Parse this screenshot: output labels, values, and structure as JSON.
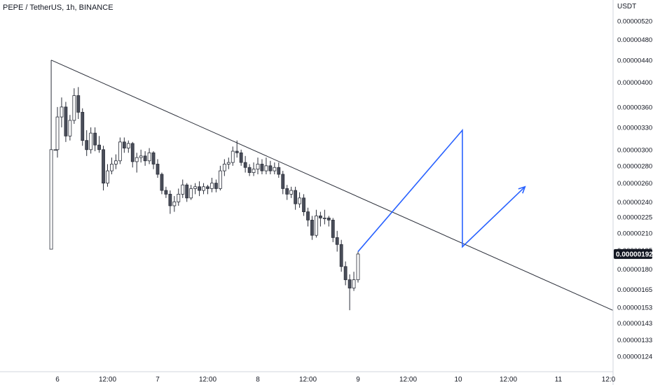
{
  "header": {
    "title": "PEPE / TetherUS, 1h, BINANCE",
    "unit": "USDT"
  },
  "colors": {
    "candle_up_fill": "#ffffff",
    "candle_down_fill": "#4a4e5a",
    "candle_outline": "#2a2e39",
    "trendline": "#2a2e39",
    "projection": "#2962ff",
    "axis_line": "#d1d4dc",
    "price_tag_bg": "#131722"
  },
  "chart_data": {
    "type": "candlestick",
    "title": "PEPE / TetherUS, 1h, BINANCE",
    "ylabel": "USDT",
    "ylim": [
      1.17e-07,
      5.65e-07
    ],
    "y_scale": "log",
    "y_ticks": [
      "0.00000520",
      "0.00000480",
      "0.00000440",
      "0.00000400",
      "0.00000360",
      "0.00000330",
      "0.00000300",
      "0.00000280",
      "0.00000260",
      "0.00000240",
      "0.00000225",
      "0.00000210",
      "0.00000195",
      "0.00000180",
      "0.00000165",
      "0.00000153",
      "0.00000143",
      "0.00000133",
      "0.00000124"
    ],
    "y_tick_values": [
      5.2e-07,
      4.8e-07,
      4.4e-07,
      4e-07,
      3.6e-07,
      3.3e-07,
      3e-07,
      2.8e-07,
      2.6e-07,
      2.4e-07,
      2.25e-07,
      2.1e-07,
      1.95e-07,
      1.8e-07,
      1.65e-07,
      1.53e-07,
      1.43e-07,
      1.33e-07,
      1.24e-07
    ],
    "x_ticks": [
      "6",
      "12:00",
      "7",
      "12:00",
      "8",
      "12:00",
      "9",
      "12:00",
      "10",
      "12:00",
      "11",
      "12:0"
    ],
    "x_tick_hours": [
      0,
      12,
      24,
      36,
      48,
      60,
      72,
      84,
      96,
      108,
      120,
      132
    ],
    "current_price": "0.00000192",
    "current_price_value": 1.92e-07,
    "candles": [
      {
        "h": -1.5,
        "o": 1.96e-07,
        "c": 3e-07,
        "hi": 4.4e-07,
        "lo": 1.96e-07
      },
      {
        "h": -0.5,
        "o": 3e-07,
        "c": 3e-07,
        "hi": 3e-07,
        "lo": 3e-07
      },
      {
        "h": 0,
        "o": 3e-07,
        "c": 3.45e-07,
        "hi": 3.6e-07,
        "lo": 2.9e-07
      },
      {
        "h": 1,
        "o": 3.45e-07,
        "c": 3.6e-07,
        "hi": 3.75e-07,
        "lo": 3.3e-07
      },
      {
        "h": 2,
        "o": 3.6e-07,
        "c": 3.18e-07,
        "hi": 3.68e-07,
        "lo": 3.1e-07
      },
      {
        "h": 3,
        "o": 3.18e-07,
        "c": 3.4e-07,
        "hi": 3.48e-07,
        "lo": 3.12e-07
      },
      {
        "h": 4,
        "o": 3.4e-07,
        "c": 3.78e-07,
        "hi": 3.9e-07,
        "lo": 3.35e-07
      },
      {
        "h": 5,
        "o": 3.78e-07,
        "c": 3.52e-07,
        "hi": 3.92e-07,
        "lo": 3.42e-07
      },
      {
        "h": 6,
        "o": 3.52e-07,
        "c": 3.12e-07,
        "hi": 3.58e-07,
        "lo": 3.05e-07
      },
      {
        "h": 7,
        "o": 3.12e-07,
        "c": 3e-07,
        "hi": 3.26e-07,
        "lo": 2.92e-07
      },
      {
        "h": 8,
        "o": 3e-07,
        "c": 3.22e-07,
        "hi": 3.3e-07,
        "lo": 2.95e-07
      },
      {
        "h": 9,
        "o": 3.22e-07,
        "c": 3.06e-07,
        "hi": 3.3e-07,
        "lo": 2.98e-07
      },
      {
        "h": 10,
        "o": 3.06e-07,
        "c": 3e-07,
        "hi": 3.18e-07,
        "lo": 2.96e-07
      },
      {
        "h": 11,
        "o": 3e-07,
        "c": 2.6e-07,
        "hi": 3.05e-07,
        "lo": 2.52e-07
      },
      {
        "h": 12,
        "o": 2.6e-07,
        "c": 2.74e-07,
        "hi": 2.82e-07,
        "lo": 2.56e-07
      },
      {
        "h": 13,
        "o": 2.74e-07,
        "c": 2.82e-07,
        "hi": 2.9e-07,
        "lo": 2.7e-07
      },
      {
        "h": 14,
        "o": 2.82e-07,
        "c": 2.86e-07,
        "hi": 2.94e-07,
        "lo": 2.76e-07
      },
      {
        "h": 15,
        "o": 2.86e-07,
        "c": 3.1e-07,
        "hi": 3.16e-07,
        "lo": 2.82e-07
      },
      {
        "h": 16,
        "o": 3.1e-07,
        "c": 3.02e-07,
        "hi": 3.16e-07,
        "lo": 2.96e-07
      },
      {
        "h": 17,
        "o": 3.02e-07,
        "c": 3.08e-07,
        "hi": 3.12e-07,
        "lo": 2.96e-07
      },
      {
        "h": 18,
        "o": 3.08e-07,
        "c": 2.85e-07,
        "hi": 3.1e-07,
        "lo": 2.78e-07
      },
      {
        "h": 19,
        "o": 2.85e-07,
        "c": 2.9e-07,
        "hi": 2.96e-07,
        "lo": 2.72e-07
      },
      {
        "h": 20,
        "o": 2.9e-07,
        "c": 2.92e-07,
        "hi": 3e-07,
        "lo": 2.84e-07
      },
      {
        "h": 21,
        "o": 2.92e-07,
        "c": 2.86e-07,
        "hi": 2.98e-07,
        "lo": 2.8e-07
      },
      {
        "h": 22,
        "o": 2.86e-07,
        "c": 2.96e-07,
        "hi": 3.02e-07,
        "lo": 2.82e-07
      },
      {
        "h": 23,
        "o": 2.96e-07,
        "c": 2.82e-07,
        "hi": 2.98e-07,
        "lo": 2.76e-07
      },
      {
        "h": 24,
        "o": 2.82e-07,
        "c": 2.7e-07,
        "hi": 2.88e-07,
        "lo": 2.66e-07
      },
      {
        "h": 25,
        "o": 2.7e-07,
        "c": 2.52e-07,
        "hi": 2.72e-07,
        "lo": 2.48e-07
      },
      {
        "h": 26,
        "o": 2.52e-07,
        "c": 2.48e-07,
        "hi": 2.56e-07,
        "lo": 2.44e-07
      },
      {
        "h": 27,
        "o": 2.48e-07,
        "c": 2.36e-07,
        "hi": 2.52e-07,
        "lo": 2.28e-07
      },
      {
        "h": 28,
        "o": 2.36e-07,
        "c": 2.4e-07,
        "hi": 2.46e-07,
        "lo": 2.3e-07
      },
      {
        "h": 29,
        "o": 2.4e-07,
        "c": 2.48e-07,
        "hi": 2.54e-07,
        "lo": 2.36e-07
      },
      {
        "h": 30,
        "o": 2.48e-07,
        "c": 2.58e-07,
        "hi": 2.64e-07,
        "lo": 2.44e-07
      },
      {
        "h": 31,
        "o": 2.58e-07,
        "c": 2.44e-07,
        "hi": 2.6e-07,
        "lo": 2.4e-07
      },
      {
        "h": 32,
        "o": 2.44e-07,
        "c": 2.54e-07,
        "hi": 2.58e-07,
        "lo": 2.42e-07
      },
      {
        "h": 33,
        "o": 2.54e-07,
        "c": 2.56e-07,
        "hi": 2.6e-07,
        "lo": 2.48e-07
      },
      {
        "h": 34,
        "o": 2.56e-07,
        "c": 2.52e-07,
        "hi": 2.62e-07,
        "lo": 2.46e-07
      },
      {
        "h": 35,
        "o": 2.52e-07,
        "c": 2.56e-07,
        "hi": 2.6e-07,
        "lo": 2.48e-07
      },
      {
        "h": 36,
        "o": 2.56e-07,
        "c": 2.54e-07,
        "hi": 2.58e-07,
        "lo": 2.48e-07
      },
      {
        "h": 37,
        "o": 2.54e-07,
        "c": 2.6e-07,
        "hi": 2.66e-07,
        "lo": 2.5e-07
      },
      {
        "h": 38,
        "o": 2.6e-07,
        "c": 2.54e-07,
        "hi": 2.64e-07,
        "lo": 2.5e-07
      },
      {
        "h": 39,
        "o": 2.54e-07,
        "c": 2.74e-07,
        "hi": 2.8e-07,
        "lo": 2.52e-07
      },
      {
        "h": 40,
        "o": 2.74e-07,
        "c": 2.82e-07,
        "hi": 2.88e-07,
        "lo": 2.68e-07
      },
      {
        "h": 41,
        "o": 2.82e-07,
        "c": 2.84e-07,
        "hi": 2.9e-07,
        "lo": 2.76e-07
      },
      {
        "h": 42,
        "o": 2.84e-07,
        "c": 2.98e-07,
        "hi": 3.04e-07,
        "lo": 2.8e-07
      },
      {
        "h": 43,
        "o": 2.98e-07,
        "c": 2.96e-07,
        "hi": 3.12e-07,
        "lo": 2.9e-07
      },
      {
        "h": 44,
        "o": 2.96e-07,
        "c": 2.84e-07,
        "hi": 3e-07,
        "lo": 2.8e-07
      },
      {
        "h": 45,
        "o": 2.84e-07,
        "c": 2.78e-07,
        "hi": 2.92e-07,
        "lo": 2.72e-07
      },
      {
        "h": 46,
        "o": 2.78e-07,
        "c": 2.72e-07,
        "hi": 2.82e-07,
        "lo": 2.68e-07
      },
      {
        "h": 47,
        "o": 2.72e-07,
        "c": 2.76e-07,
        "hi": 2.84e-07,
        "lo": 2.68e-07
      },
      {
        "h": 48,
        "o": 2.76e-07,
        "c": 2.82e-07,
        "hi": 2.9e-07,
        "lo": 2.7e-07
      },
      {
        "h": 49,
        "o": 2.82e-07,
        "c": 2.74e-07,
        "hi": 2.88e-07,
        "lo": 2.7e-07
      },
      {
        "h": 50,
        "o": 2.74e-07,
        "c": 2.8e-07,
        "hi": 2.9e-07,
        "lo": 2.7e-07
      },
      {
        "h": 51,
        "o": 2.8e-07,
        "c": 2.74e-07,
        "hi": 2.86e-07,
        "lo": 2.7e-07
      },
      {
        "h": 52,
        "o": 2.74e-07,
        "c": 2.78e-07,
        "hi": 2.84e-07,
        "lo": 2.7e-07
      },
      {
        "h": 53,
        "o": 2.78e-07,
        "c": 2.7e-07,
        "hi": 2.84e-07,
        "lo": 2.66e-07
      },
      {
        "h": 54,
        "o": 2.7e-07,
        "c": 2.54e-07,
        "hi": 2.74e-07,
        "lo": 2.48e-07
      },
      {
        "h": 55,
        "o": 2.54e-07,
        "c": 2.48e-07,
        "hi": 2.58e-07,
        "lo": 2.42e-07
      },
      {
        "h": 56,
        "o": 2.48e-07,
        "c": 2.52e-07,
        "hi": 2.56e-07,
        "lo": 2.44e-07
      },
      {
        "h": 57,
        "o": 2.52e-07,
        "c": 2.38e-07,
        "hi": 2.56e-07,
        "lo": 2.32e-07
      },
      {
        "h": 58,
        "o": 2.38e-07,
        "c": 2.44e-07,
        "hi": 2.5e-07,
        "lo": 2.34e-07
      },
      {
        "h": 59,
        "o": 2.44e-07,
        "c": 2.3e-07,
        "hi": 2.48e-07,
        "lo": 2.26e-07
      },
      {
        "h": 60,
        "o": 2.3e-07,
        "c": 2.22e-07,
        "hi": 2.34e-07,
        "lo": 2.16e-07
      },
      {
        "h": 61,
        "o": 2.22e-07,
        "c": 2.08e-07,
        "hi": 2.26e-07,
        "lo": 2.04e-07
      },
      {
        "h": 62,
        "o": 2.08e-07,
        "c": 2.26e-07,
        "hi": 2.32e-07,
        "lo": 2.06e-07
      },
      {
        "h": 63,
        "o": 2.26e-07,
        "c": 2.24e-07,
        "hi": 2.3e-07,
        "lo": 2.16e-07
      },
      {
        "h": 64,
        "o": 2.24e-07,
        "c": 2.24e-07,
        "hi": 2.32e-07,
        "lo": 2.18e-07
      },
      {
        "h": 65,
        "o": 2.24e-07,
        "c": 2.22e-07,
        "hi": 2.26e-07,
        "lo": 2.16e-07
      },
      {
        "h": 66,
        "o": 2.22e-07,
        "c": 2.06e-07,
        "hi": 2.24e-07,
        "lo": 2.02e-07
      },
      {
        "h": 67,
        "o": 2.06e-07,
        "c": 2e-07,
        "hi": 2.12e-07,
        "lo": 1.94e-07
      },
      {
        "h": 68,
        "o": 2e-07,
        "c": 1.82e-07,
        "hi": 2.04e-07,
        "lo": 1.78e-07
      },
      {
        "h": 69,
        "o": 1.82e-07,
        "c": 1.72e-07,
        "hi": 1.86e-07,
        "lo": 1.68e-07
      },
      {
        "h": 70,
        "o": 1.72e-07,
        "c": 1.66e-07,
        "hi": 1.76e-07,
        "lo": 1.51e-07
      },
      {
        "h": 71,
        "o": 1.66e-07,
        "c": 1.72e-07,
        "hi": 1.78e-07,
        "lo": 1.64e-07
      },
      {
        "h": 72,
        "o": 1.72e-07,
        "c": 1.92e-07,
        "hi": 1.94e-07,
        "lo": 1.7e-07
      }
    ],
    "trendline": [
      {
        "t": -1.5,
        "p": 4.4e-07
      },
      {
        "t": 133,
        "p": 1.51e-07
      }
    ],
    "projection_path": [
      {
        "t": 72,
        "p": 1.94e-07
      },
      {
        "t": 97,
        "p": 3.26e-07
      },
      {
        "t": 97,
        "p": 1.98e-07
      },
      {
        "t": 112,
        "p": 2.56e-07
      }
    ]
  }
}
